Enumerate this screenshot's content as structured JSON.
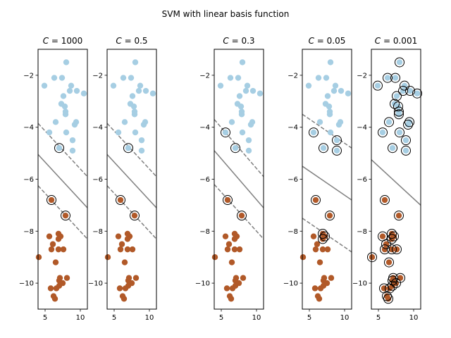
{
  "chart_data": {
    "type": "scatter",
    "title": "SVM with linear basis function",
    "xlim": [
      4,
      11
    ],
    "ylim": [
      -11,
      -1
    ],
    "xticks": [
      5,
      10
    ],
    "yticks": [
      -2,
      -4,
      -6,
      -8,
      -10
    ],
    "colors": {
      "class_0": "#a6cee3",
      "class_1": "#b15928",
      "decision": "#808080",
      "support_vector_ring": "#000000"
    },
    "points": {
      "class_0": [
        [
          8.0,
          -1.5
        ],
        [
          6.3,
          -2.1
        ],
        [
          7.4,
          -2.1
        ],
        [
          4.9,
          -2.4
        ],
        [
          8.7,
          -2.4
        ],
        [
          8.5,
          -2.6
        ],
        [
          9.5,
          -2.6
        ],
        [
          10.5,
          -2.7
        ],
        [
          7.6,
          -2.8
        ],
        [
          7.3,
          -3.1
        ],
        [
          7.8,
          -3.2
        ],
        [
          7.9,
          -3.4
        ],
        [
          7.9,
          -3.5
        ],
        [
          6.5,
          -3.8
        ],
        [
          9.4,
          -3.8
        ],
        [
          9.2,
          -3.9
        ],
        [
          5.6,
          -4.2
        ],
        [
          8.0,
          -4.2
        ],
        [
          8.9,
          -4.5
        ],
        [
          7.0,
          -4.8
        ],
        [
          8.9,
          -4.9
        ]
      ],
      "class_1": [
        [
          5.9,
          -6.8
        ],
        [
          7.9,
          -7.4
        ],
        [
          6.9,
          -8.1
        ],
        [
          7.2,
          -8.2
        ],
        [
          5.6,
          -8.2
        ],
        [
          6.9,
          -8.3
        ],
        [
          6.1,
          -8.5
        ],
        [
          6.9,
          -8.7
        ],
        [
          5.9,
          -8.7
        ],
        [
          7.6,
          -8.7
        ],
        [
          4.1,
          -9.0
        ],
        [
          6.5,
          -9.2
        ],
        [
          8.1,
          -9.8
        ],
        [
          7.1,
          -9.8
        ],
        [
          7.0,
          -9.9
        ],
        [
          7.5,
          -10.0
        ],
        [
          7.0,
          -10.1
        ],
        [
          5.8,
          -10.2
        ],
        [
          6.6,
          -10.2
        ],
        [
          6.2,
          -10.5
        ],
        [
          6.4,
          -10.6
        ]
      ]
    },
    "panels": [
      {
        "title_value": "1000",
        "decision_line": [
          [
            4,
            -5.05
          ],
          [
            11,
            -7.1
          ]
        ],
        "margin_upper": [
          [
            4,
            -3.85
          ],
          [
            11,
            -5.9
          ]
        ],
        "margin_lower": [
          [
            4,
            -6.25
          ],
          [
            11,
            -8.3
          ]
        ],
        "support_vectors": [
          [
            7.0,
            -4.8
          ],
          [
            5.9,
            -6.8
          ],
          [
            7.9,
            -7.4
          ]
        ]
      },
      {
        "title_value": "0.5",
        "decision_line": [
          [
            4,
            -5.05
          ],
          [
            11,
            -7.1
          ]
        ],
        "margin_upper": [
          [
            4,
            -3.85
          ],
          [
            11,
            -5.9
          ]
        ],
        "margin_lower": [
          [
            4,
            -6.25
          ],
          [
            11,
            -8.3
          ]
        ],
        "support_vectors": [
          [
            7.0,
            -4.8
          ],
          [
            5.9,
            -6.8
          ],
          [
            7.9,
            -7.4
          ]
        ]
      },
      {
        "title_value": "0.3",
        "decision_line": [
          [
            4,
            -4.9
          ],
          [
            11,
            -7.1
          ]
        ],
        "margin_upper": [
          [
            4,
            -3.7
          ],
          [
            11,
            -5.9
          ]
        ],
        "margin_lower": [
          [
            4,
            -6.2
          ],
          [
            11,
            -8.3
          ]
        ],
        "support_vectors": [
          [
            5.6,
            -4.2
          ],
          [
            7.0,
            -4.8
          ],
          [
            5.9,
            -6.8
          ],
          [
            7.9,
            -7.4
          ]
        ]
      },
      {
        "title_value": "0.05",
        "decision_line": [
          [
            4,
            -5.5
          ],
          [
            11,
            -6.8
          ]
        ],
        "margin_upper": [
          [
            4,
            -3.5
          ],
          [
            11,
            -4.8
          ]
        ],
        "margin_lower": [
          [
            4,
            -7.5
          ],
          [
            11,
            -8.8
          ]
        ],
        "support_vectors": [
          [
            5.6,
            -4.2
          ],
          [
            7.0,
            -4.8
          ],
          [
            8.9,
            -4.5
          ],
          [
            8.9,
            -4.9
          ],
          [
            5.9,
            -6.8
          ],
          [
            7.9,
            -7.4
          ],
          [
            6.9,
            -8.1
          ],
          [
            7.2,
            -8.2
          ],
          [
            6.9,
            -8.3
          ]
        ]
      },
      {
        "title_value": "0.001",
        "decision_line": [
          [
            4,
            -5.25
          ],
          [
            11,
            -7.0
          ]
        ],
        "margin_upper": null,
        "margin_lower": null,
        "support_vectors": "all"
      }
    ]
  }
}
